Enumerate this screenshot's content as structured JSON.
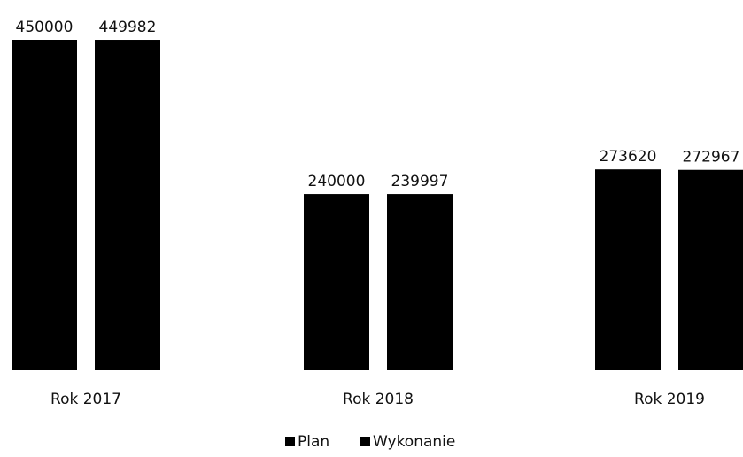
{
  "chart_data": {
    "type": "bar",
    "title": "",
    "xlabel": "",
    "ylabel": "",
    "categories": [
      "Rok 2017",
      "Rok 2018",
      "Rok 2019"
    ],
    "series": [
      {
        "name": "Plan",
        "values": [
          450000,
          240000,
          273620
        ],
        "color": "#000000"
      },
      {
        "name": "Wykonanie",
        "values": [
          449982,
          239997,
          272967
        ],
        "color": "#000000"
      }
    ],
    "data_labels": [
      [
        "450000",
        "240000",
        "273620"
      ],
      [
        "449982",
        "239997",
        "272967"
      ]
    ],
    "ylim": [
      0,
      450000
    ],
    "grid": false,
    "legend_position": "bottom-center"
  }
}
